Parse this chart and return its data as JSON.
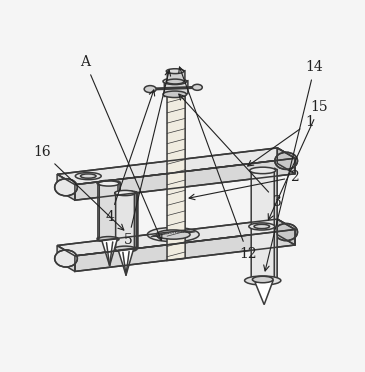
{
  "bg_color": "#f5f5f5",
  "line_color": "#3a3a3a",
  "white": "#ffffff",
  "figsize": [
    3.65,
    3.72
  ],
  "dpi": 100,
  "label_fs": 10,
  "label_color": "#222222"
}
